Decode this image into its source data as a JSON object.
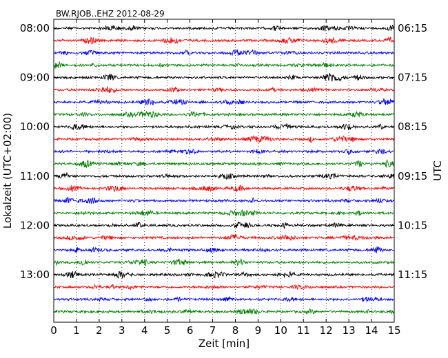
{
  "chart_data": {
    "type": "line",
    "title": "BW.RJOB..EHZ 2012-08-29",
    "xlabel": "Zeit  [min]",
    "ylabel_left": "Lokalzeit (UTC+02:00)",
    "ylabel_right": "UTC",
    "xlim": [
      0,
      15
    ],
    "x_ticks": [
      0,
      1,
      2,
      3,
      4,
      5,
      6,
      7,
      8,
      9,
      10,
      11,
      12,
      13,
      14,
      15
    ],
    "grid": "vertical dotted",
    "trace_interval_min": 15,
    "trace_count": 24,
    "trace_colors": [
      "#000000",
      "#ff0000",
      "#0000ff",
      "#007f00"
    ],
    "left_tick_labels": [
      "08:00",
      "09:00",
      "10:00",
      "11:00",
      "12:00",
      "13:00"
    ],
    "right_tick_labels": [
      "06:15",
      "07:15",
      "08:15",
      "09:15",
      "10:15",
      "11:15"
    ],
    "label_every_n_traces": 4
  }
}
